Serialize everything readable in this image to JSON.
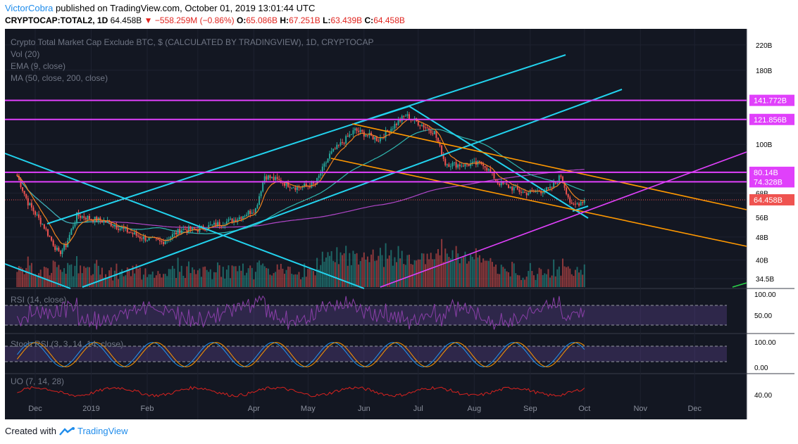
{
  "header": {
    "user": "VictorCobra",
    "published": "published on TradingView.com, October 01, 2019 13:01:44 UTC",
    "symbol": "CRYPTOCAP:TOTAL2, 1D",
    "last": "64.458B",
    "change": "−558.259M (−0.86%)",
    "o_label": "O:",
    "o_val": "65.086B",
    "h_label": "H:",
    "h_val": "67.251B",
    "l_label": "L:",
    "l_val": "63.439B",
    "c_label": "C:",
    "c_val": "64.458B"
  },
  "legend": {
    "title": "Crypto Total Market Cap Exclude BTC, $ (CALCULATED BY TRADINGVIEW), 1D, CRYPTOCAP",
    "vol": "Vol (20)",
    "ema": "EMA (9, close)",
    "ma": "MA (50, close, 200, close)"
  },
  "footer": {
    "created": "Created with",
    "brand": "TradingView"
  },
  "colors": {
    "bg": "#131722",
    "up": "#26a69a",
    "down": "#ef5350",
    "cyan": "#22d3ee",
    "magenta": "#e040fb",
    "orange": "#ff9800",
    "ema": "#f0821e",
    "ma50": "#2fb7b0",
    "ma200": "#b046c8",
    "rsi": "#8a3fa8",
    "stochK": "#2196f3",
    "stochD": "#ff9800",
    "uo": "#d8221f",
    "label_magenta": "#e040fb",
    "label_last": "#ef5350",
    "label_green": "#2bd34a"
  },
  "chart_data": [
    {
      "type": "candlestick",
      "title": "Crypto Total Market Cap Exclude BTC, $ (CALCULATED BY TRADINGVIEW), 1D, CRYPTOCAP",
      "scale": "log",
      "x_ticks": [
        "Dec",
        "2019",
        "Feb",
        "Apr",
        "May",
        "Jun",
        "Jul",
        "Aug",
        "Sep",
        "Oct",
        "Nov",
        "Dec"
      ],
      "y_ticks": [
        "220B",
        "180B",
        "100B",
        "68B",
        "56B",
        "48B",
        "40B",
        "34.5B"
      ],
      "y_tick_values": [
        220,
        180,
        100,
        68,
        56,
        48,
        40,
        34.5
      ],
      "ylim": [
        33,
        235
      ],
      "price_labels": [
        "141.772B",
        "121.856B",
        "80.14B",
        "74.328B",
        "64.458B"
      ],
      "price_label_values": [
        141.772,
        121.856,
        80.14,
        74.328,
        64.458
      ],
      "price_label_colors": [
        "magenta",
        "magenta",
        "magenta",
        "magenta",
        "last"
      ],
      "last_value": 64.458,
      "close_anchors": [
        {
          "x": "2018-11-21",
          "y": 78
        },
        {
          "x": "2018-11-27",
          "y": 63
        },
        {
          "x": "2018-12-06",
          "y": 52
        },
        {
          "x": "2018-12-14",
          "y": 42
        },
        {
          "x": "2018-12-18",
          "y": 45
        },
        {
          "x": "2018-12-24",
          "y": 57
        },
        {
          "x": "2019-01-10",
          "y": 54
        },
        {
          "x": "2019-01-28",
          "y": 48
        },
        {
          "x": "2019-02-09",
          "y": 46
        },
        {
          "x": "2019-02-20",
          "y": 51
        },
        {
          "x": "2019-03-01",
          "y": 51
        },
        {
          "x": "2019-03-21",
          "y": 55
        },
        {
          "x": "2019-04-02",
          "y": 60
        },
        {
          "x": "2019-04-07",
          "y": 78
        },
        {
          "x": "2019-04-25",
          "y": 71
        },
        {
          "x": "2019-05-05",
          "y": 73
        },
        {
          "x": "2019-05-13",
          "y": 92
        },
        {
          "x": "2019-05-27",
          "y": 112
        },
        {
          "x": "2019-06-09",
          "y": 104
        },
        {
          "x": "2019-06-24",
          "y": 126
        },
        {
          "x": "2019-07-10",
          "y": 110
        },
        {
          "x": "2019-07-16",
          "y": 86
        },
        {
          "x": "2019-07-24",
          "y": 85
        },
        {
          "x": "2019-08-06",
          "y": 86
        },
        {
          "x": "2019-08-14",
          "y": 74
        },
        {
          "x": "2019-08-29",
          "y": 68
        },
        {
          "x": "2019-09-12",
          "y": 70
        },
        {
          "x": "2019-09-18",
          "y": 78
        },
        {
          "x": "2019-09-24",
          "y": 61
        },
        {
          "x": "2019-10-01",
          "y": 64.458
        }
      ]
    },
    {
      "type": "line",
      "name": "RSI (14, close)",
      "y_ticks": [
        "100.00",
        "50.00"
      ]
    },
    {
      "type": "line",
      "name": "Stoch RSI (3, 3, 14, 14, close)",
      "y_ticks": [
        "100.00",
        "0.00"
      ]
    },
    {
      "type": "line",
      "name": "UO (7, 14, 28)",
      "y_ticks": [
        "40.00"
      ]
    }
  ]
}
